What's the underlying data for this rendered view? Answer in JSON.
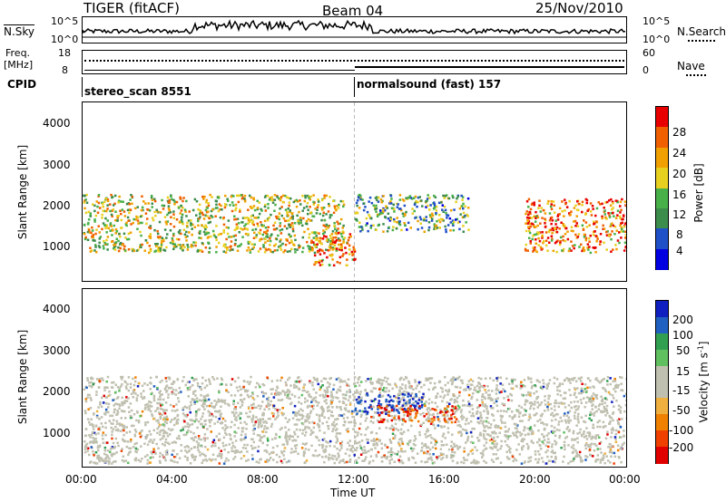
{
  "header": {
    "station": "TIGER (fitACF)",
    "beam": "Beam 04",
    "date": "25/Nov/2010"
  },
  "strip_noise": {
    "left_label": "N.Sky",
    "right_label": "N.Search",
    "left_ticks": [
      "10^5",
      "10^0"
    ],
    "right_ticks": [
      "10^5",
      "10^0"
    ]
  },
  "strip_freq": {
    "left_label_1": "Freq.",
    "left_label_2": "[MHz]",
    "right_label": "Nave",
    "left_ticks": [
      "18",
      "8"
    ],
    "right_ticks": [
      "60",
      "0"
    ]
  },
  "cpid": {
    "label": "CPID",
    "segments": [
      {
        "name": "stereo_scan 8551",
        "start": "00:00",
        "end": "12:00"
      },
      {
        "name": "normalsound (fast) 157",
        "start": "12:00",
        "end": "24:00"
      }
    ]
  },
  "colors": {
    "power": [
      "#0000e0",
      "#2050c8",
      "#3c8c4c",
      "#48b048",
      "#e8d020",
      "#f0a000",
      "#f06000",
      "#e80000"
    ],
    "velocity": [
      "#e00000",
      "#f04000",
      "#f08000",
      "#f0b040",
      "#c0c0b0",
      "#c0c0b0",
      "#60c060",
      "#30a050",
      "#2060c0",
      "#1020c0"
    ]
  },
  "chart_data": [
    {
      "type": "heatmap",
      "title": "",
      "xlabel": "",
      "ylabel": "Slant Range [km]",
      "x_ticks": [
        "00:00",
        "04:00",
        "08:00",
        "12:00",
        "16:00",
        "20:00",
        "00:00"
      ],
      "y_ticks": [
        1000,
        2000,
        3000,
        4000
      ],
      "xlim": [
        0,
        24
      ],
      "ylim": [
        200,
        4500
      ],
      "colorbar": {
        "label": "Power [dB]",
        "ticks": [
          4,
          8,
          12,
          16,
          20,
          24,
          28
        ],
        "range": [
          0,
          30
        ]
      },
      "features": [
        {
          "desc": "band",
          "hours": [
            0,
            11.5
          ],
          "range_km": [
            900,
            2300
          ],
          "level": "mid-high"
        },
        {
          "desc": "intense patch",
          "hours": [
            10,
            12
          ],
          "range_km": [
            600,
            1400
          ],
          "level": "high"
        },
        {
          "desc": "band",
          "hours": [
            12,
            17
          ],
          "range_km": [
            1400,
            2300
          ],
          "level": "mid"
        },
        {
          "desc": "band",
          "hours": [
            19.5,
            24
          ],
          "range_km": [
            900,
            2200
          ],
          "level": "high"
        }
      ]
    },
    {
      "type": "heatmap",
      "title": "",
      "xlabel": "Time UT",
      "ylabel": "Slant Range [km]",
      "x_ticks": [
        "00:00",
        "04:00",
        "08:00",
        "12:00",
        "16:00",
        "20:00",
        "00:00"
      ],
      "y_ticks": [
        1000,
        2000,
        3000,
        4000
      ],
      "xlim": [
        0,
        24
      ],
      "ylim": [
        200,
        4500
      ],
      "colorbar": {
        "label": "Velocity [m s",
        "label_sup": "-1",
        "label_end": "]",
        "ticks": [
          200,
          100,
          50,
          15,
          -15,
          -50,
          -100,
          -200
        ]
      },
      "features": [
        {
          "desc": "ground scatter",
          "hours": [
            0,
            24
          ],
          "range_km": [
            300,
            2400
          ],
          "velocity": "near zero"
        },
        {
          "desc": "positive velocities",
          "hours": [
            12,
            15
          ],
          "range_km": [
            1500,
            2000
          ],
          "velocity": 200
        },
        {
          "desc": "negative velocities",
          "hours": [
            13,
            16.5
          ],
          "range_km": [
            1300,
            1700
          ],
          "velocity": -100
        }
      ]
    }
  ]
}
